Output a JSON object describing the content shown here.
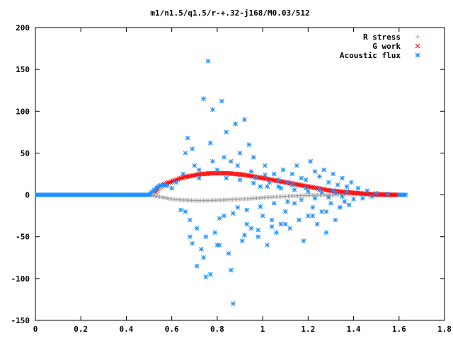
{
  "chart_data": {
    "type": "scatter",
    "title": "m1/n1.5/q1.5/r-+.32-j168/M0.03/512",
    "xlabel": "",
    "ylabel": "",
    "xlim": [
      0,
      1.8
    ],
    "ylim": [
      -150,
      200
    ],
    "x_ticks": [
      "0",
      "0.2",
      "0.4",
      "0.6",
      "0.8",
      "1",
      "1.2",
      "1.4",
      "1.6",
      "1.8"
    ],
    "y_ticks": [
      "200",
      "150",
      "100",
      "50",
      "0",
      "-50",
      "-100",
      "-150"
    ],
    "legend_position": "top-right",
    "grid": false,
    "series": [
      {
        "name": "R stress",
        "marker": "+",
        "color": "#a0a0a0",
        "x": [
          0.0,
          0.1,
          0.2,
          0.3,
          0.4,
          0.5,
          0.54,
          0.56,
          0.58,
          0.6,
          0.62,
          0.64,
          0.66,
          0.68,
          0.7,
          0.72,
          0.74,
          0.76,
          0.78,
          0.8,
          0.82,
          0.84,
          0.86,
          0.88,
          0.9,
          0.92,
          0.94,
          0.96,
          0.98,
          1.0,
          1.02,
          1.04,
          1.06,
          1.08,
          1.1,
          1.12,
          1.14,
          1.16,
          1.18,
          1.2,
          1.22,
          1.24,
          1.26,
          1.28,
          1.3,
          1.32,
          1.34,
          1.36,
          1.38,
          1.4,
          1.42,
          1.44,
          1.46,
          1.48,
          1.5,
          1.55,
          1.6,
          1.63
        ],
        "y": [
          0,
          0,
          0,
          0,
          0,
          0,
          -2,
          -3,
          -4,
          -5,
          -5.5,
          -6,
          -6.3,
          -6.5,
          -6.7,
          -6.8,
          -6.8,
          -6.7,
          -6.6,
          -6.4,
          -6.2,
          -6,
          -5.7,
          -5.4,
          -5.1,
          -4.8,
          -4.5,
          -4.1,
          -3.8,
          -3.4,
          -3,
          -2.7,
          -2.3,
          -2,
          -1.7,
          -1.4,
          -1.2,
          -1,
          -0.8,
          -0.6,
          -0.5,
          -0.4,
          -0.3,
          -0.2,
          -0.1,
          0,
          0.3,
          0.5,
          0.8,
          1,
          1,
          0.8,
          0.5,
          0.3,
          0.2,
          0.1,
          0,
          0
        ]
      },
      {
        "name": "G work",
        "marker": "x",
        "color": "#ff0000",
        "x": [
          0.53,
          0.54,
          0.55,
          0.56,
          0.58,
          0.6,
          0.62,
          0.64,
          0.66,
          0.68,
          0.7,
          0.72,
          0.74,
          0.76,
          0.78,
          0.8,
          0.82,
          0.84,
          0.86,
          0.88,
          0.9,
          0.92,
          0.94,
          0.96,
          0.98,
          1.0,
          1.02,
          1.04,
          1.06,
          1.08,
          1.1,
          1.12,
          1.14,
          1.16,
          1.18,
          1.2,
          1.22,
          1.24,
          1.26,
          1.28,
          1.3,
          1.32,
          1.34,
          1.36,
          1.38,
          1.4,
          1.42,
          1.44,
          1.46,
          1.48,
          1.5,
          1.55,
          1.6
        ],
        "y": [
          3,
          7,
          10,
          12,
          14,
          16,
          18,
          20,
          21.5,
          22.5,
          23.5,
          24.5,
          25,
          25.5,
          25.8,
          26,
          26,
          25.8,
          25.5,
          25,
          24.5,
          24,
          23,
          22,
          21,
          20,
          19,
          18,
          17,
          16,
          15,
          14,
          13,
          12,
          11,
          10,
          9,
          8,
          7,
          6,
          5,
          4.5,
          4,
          3.5,
          3,
          2.5,
          2,
          1.6,
          1.2,
          0.8,
          0.5,
          0.2,
          0
        ]
      },
      {
        "name": "Acoustic flux",
        "marker": "*",
        "color": "#1e90ff",
        "x": [
          0.0,
          0.1,
          0.2,
          0.3,
          0.4,
          0.5,
          0.54,
          0.56,
          0.58,
          0.6,
          0.62,
          0.64,
          0.65,
          0.66,
          0.67,
          0.68,
          0.69,
          0.7,
          0.71,
          0.72,
          0.73,
          0.74,
          0.75,
          0.76,
          0.77,
          0.78,
          0.79,
          0.8,
          0.81,
          0.82,
          0.83,
          0.84,
          0.85,
          0.86,
          0.87,
          0.88,
          0.89,
          0.9,
          0.91,
          0.92,
          0.93,
          0.94,
          0.95,
          0.96,
          0.97,
          0.98,
          0.99,
          1.0,
          1.01,
          1.02,
          1.03,
          1.04,
          1.05,
          1.06,
          1.07,
          1.08,
          1.09,
          1.1,
          1.11,
          1.12,
          1.13,
          1.14,
          1.15,
          1.16,
          1.17,
          1.18,
          1.19,
          1.2,
          1.21,
          1.22,
          1.23,
          1.24,
          1.25,
          1.26,
          1.27,
          1.28,
          1.29,
          1.3,
          1.31,
          1.32,
          1.33,
          1.34,
          1.35,
          1.36,
          1.37,
          1.38,
          1.39,
          1.4,
          1.42,
          1.44,
          1.46,
          1.48,
          1.5,
          1.55,
          1.6,
          1.63,
          0.68,
          0.71,
          0.74,
          0.77,
          0.8,
          0.83,
          0.86,
          0.89,
          0.92,
          0.95,
          0.98,
          1.01,
          1.04,
          1.07,
          1.1,
          1.13,
          1.16,
          1.19,
          1.22,
          1.25,
          1.28,
          1.31,
          1.34,
          1.37,
          0.66,
          0.69,
          0.72,
          0.75,
          0.78,
          0.81,
          0.84,
          0.87,
          0.9,
          0.93,
          0.96,
          0.99,
          1.02,
          1.05,
          1.08,
          1.11,
          1.14,
          1.17,
          1.2,
          1.23,
          1.26,
          1.29,
          1.32,
          1.35
        ],
        "y": [
          0,
          0,
          0,
          0,
          0,
          0,
          10,
          12,
          11,
          8,
          15,
          -18,
          25,
          -20,
          68,
          -30,
          55,
          35,
          -40,
          20,
          -65,
          115,
          -50,
          160,
          -95,
          102,
          -45,
          30,
          -60,
          112,
          -25,
          75,
          -70,
          40,
          -130,
          85,
          -15,
          50,
          -55,
          90,
          -35,
          60,
          -40,
          45,
          20,
          -50,
          10,
          -25,
          35,
          -60,
          15,
          -30,
          25,
          -45,
          10,
          -35,
          30,
          -20,
          15,
          -40,
          25,
          -10,
          35,
          -30,
          20,
          -55,
          18,
          -25,
          40,
          -15,
          28,
          -35,
          22,
          -20,
          30,
          -45,
          15,
          -10,
          25,
          -30,
          12,
          -15,
          20,
          -8,
          10,
          -12,
          15,
          -5,
          8,
          -4,
          5,
          -2,
          2,
          1,
          0,
          0,
          -50,
          -85,
          -75,
          62,
          -60,
          45,
          -90,
          35,
          -48,
          28,
          -42,
          24,
          -38,
          18,
          -35,
          12,
          -30,
          8,
          -25,
          6,
          -20,
          5,
          -15,
          4,
          50,
          -58,
          30,
          -98,
          40,
          -28,
          20,
          -22,
          18,
          -18,
          14,
          -14,
          10,
          -10,
          8,
          -8,
          6,
          -6,
          4,
          -4,
          3,
          -3,
          2,
          -2
        ]
      }
    ]
  }
}
